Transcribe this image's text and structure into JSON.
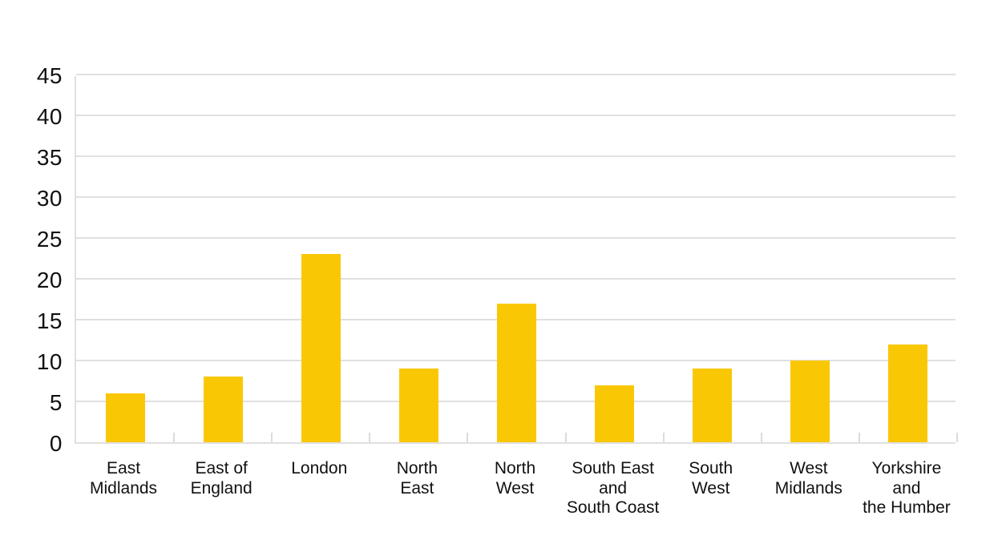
{
  "chart_data": {
    "type": "bar",
    "title": "",
    "categories": [
      "East Midlands",
      "East of England",
      "London",
      "North East",
      "North West",
      "South East and South Coast",
      "South West",
      "West Midlands",
      "Yorkshire and the Humber"
    ],
    "categories_display": [
      "East\nMidlands",
      "East of\nEngland",
      "London",
      "North\nEast",
      "North\nWest",
      "South East\nand\nSouth Coast",
      "South\nWest",
      "West\nMidlands",
      "Yorkshire\nand\nthe Humber"
    ],
    "values": [
      6,
      8,
      23,
      9,
      17,
      7,
      9,
      10,
      12
    ],
    "xlabel": "",
    "ylabel": "",
    "ylim": [
      0,
      45
    ],
    "yticks": [
      0,
      5,
      10,
      15,
      20,
      25,
      30,
      35,
      40,
      45
    ],
    "grid": "horizontal-only",
    "legend": "none",
    "colors": {
      "bar": "#FAC704",
      "gridline": "#e0e0e0",
      "tick": "#dcdcdc",
      "text": "#111111",
      "background": "#ffffff"
    }
  }
}
